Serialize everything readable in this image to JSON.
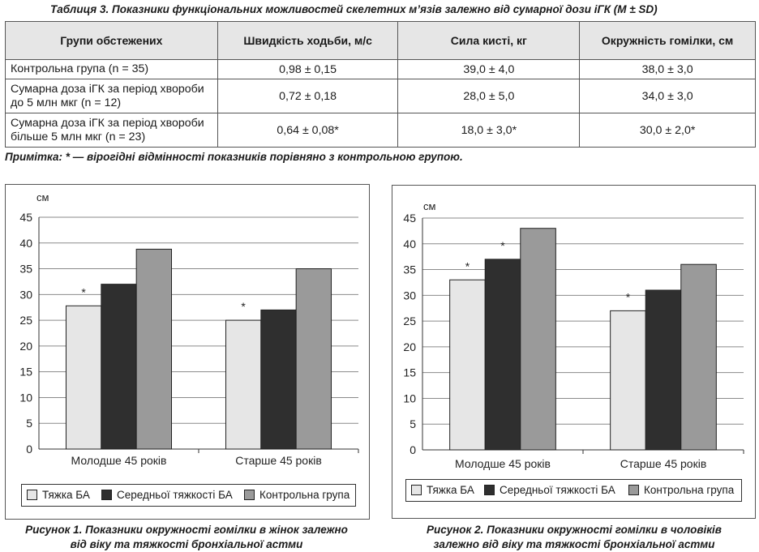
{
  "table": {
    "caption": "Таблиця 3. Показники функціональних можливостей скелетних м’язів залежно від сумарної дози іГК (M ± SD)",
    "headers": [
      "Групи обстежених",
      "Швидкість ходьби, м/с",
      "Сила кисті, кг",
      "Окружність гомілки, см"
    ],
    "rows": [
      {
        "group": "Контрольна група (n = 35)",
        "speed": "0,98 ± 0,15",
        "grip": "39,0 ± 4,0",
        "calf": "38,0 ± 3,0"
      },
      {
        "group": "Сумарна доза іГК за період хвороби до 5 млн мкг (n = 12)",
        "speed": "0,72 ± 0,18",
        "grip": "28,0 ± 5,0",
        "calf": "34,0 ± 3,0"
      },
      {
        "group": "Сумарна доза іГК за період хвороби більше 5 млн мкг (n = 23)",
        "speed": "0,64 ± 0,08*",
        "grip": "18,0 ± 3,0*",
        "calf": "30,0 ± 2,0*"
      }
    ],
    "note": "Примітка: * — вірогідні відмінності показників порівняно з контрольною групою."
  },
  "figures": {
    "fig1_caption_line1": "Рисунок 1. Показники окружності гомілки в жінок залежно",
    "fig1_caption_line2": "від віку та тяжкості бронхіальної астми",
    "fig2_caption_line1": "Рисунок 2. Показники окружності гомілки в чоловіків",
    "fig2_caption_line2": "залежно від віку та тяжкості бронхіальної астми"
  },
  "colors": {
    "light": "#e6e6e6",
    "dark": "#2f2f2f",
    "mid": "#9a9a9a",
    "grid": "#8a8a8a"
  },
  "chart_data": [
    {
      "type": "bar",
      "ylabel": "см",
      "ylim": [
        0,
        45
      ],
      "yticks": [
        0,
        5,
        10,
        15,
        20,
        25,
        30,
        35,
        40,
        45
      ],
      "grid": true,
      "legend": "bottom",
      "categories": [
        "Молодше 45 років",
        "Старше 45 років"
      ],
      "series": [
        {
          "name": "Тяжка БА",
          "values": [
            27.8,
            25
          ],
          "markers": [
            "*",
            "*"
          ]
        },
        {
          "name": "Середньої тяжкості БА",
          "values": [
            32,
            27
          ],
          "markers": [
            "",
            ""
          ]
        },
        {
          "name": "Контрольна група",
          "values": [
            38.8,
            35
          ],
          "markers": [
            "",
            ""
          ]
        }
      ]
    },
    {
      "type": "bar",
      "ylabel": "см",
      "ylim": [
        0,
        45
      ],
      "yticks": [
        0,
        5,
        10,
        15,
        20,
        25,
        30,
        35,
        40,
        45
      ],
      "grid": true,
      "legend": "bottom",
      "categories": [
        "Молодше 45 років",
        "Старше 45 років"
      ],
      "series": [
        {
          "name": "Тяжка БА",
          "values": [
            33,
            27
          ],
          "markers": [
            "*",
            "*"
          ]
        },
        {
          "name": "Середньої тяжкості БА",
          "values": [
            37,
            31
          ],
          "markers": [
            "*",
            ""
          ]
        },
        {
          "name": "Контрольна група",
          "values": [
            43,
            36
          ],
          "markers": [
            "",
            ""
          ]
        }
      ]
    }
  ]
}
